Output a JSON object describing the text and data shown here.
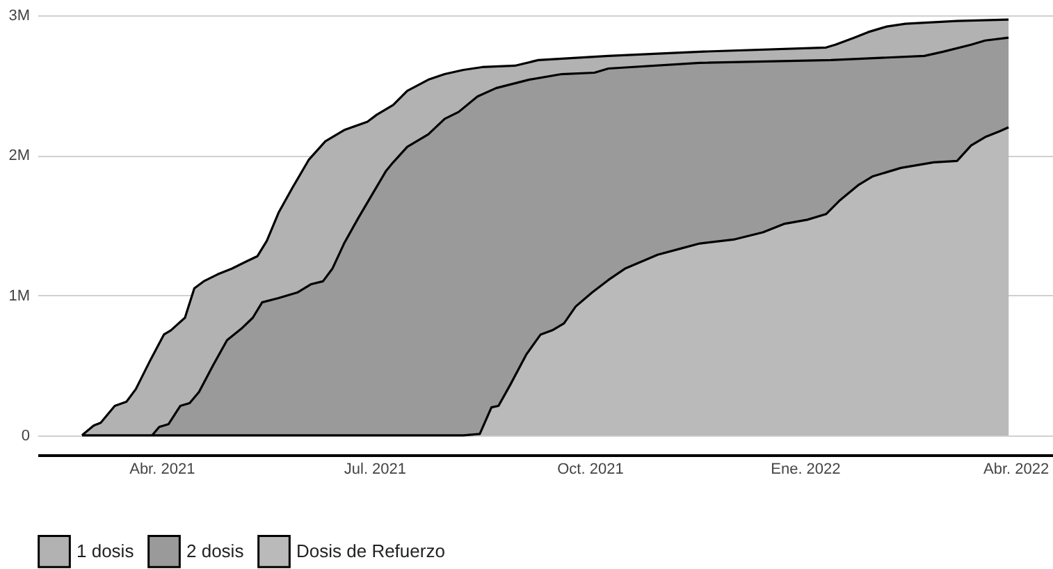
{
  "chart_data": {
    "type": "area",
    "legend": "bottom",
    "grid": "y",
    "xlim": [
      "2021-02-07",
      "2022-04-17"
    ],
    "xticks": [
      {
        "value": "2021-04-01",
        "label": "Abr. 2021"
      },
      {
        "value": "2021-07-01",
        "label": "Jul. 2021"
      },
      {
        "value": "2021-10-01",
        "label": "Oct. 2021"
      },
      {
        "value": "2022-01-01",
        "label": "Ene. 2022"
      },
      {
        "value": "2022-04-01",
        "label": "Abr. 2022"
      }
    ],
    "ylim": [
      -140000,
      3000000
    ],
    "yticks": [
      0,
      {
        "value": 1000000,
        "label": "1M"
      },
      {
        "value": 2000000,
        "label": "2M"
      },
      {
        "value": 3000000,
        "label": "3M"
      }
    ],
    "series": [
      {
        "name": "1 dosis",
        "color": "#b2b2b2",
        "x": [
          "2021-02-26",
          "2021-03-03",
          "2021-03-06",
          "2021-03-12",
          "2021-03-17",
          "2021-03-21",
          "2021-03-27",
          "2021-04-02",
          "2021-04-05",
          "2021-04-11",
          "2021-04-15",
          "2021-04-19",
          "2021-04-25",
          "2021-05-01",
          "2021-05-07",
          "2021-05-12",
          "2021-05-16",
          "2021-05-21",
          "2021-05-27",
          "2021-06-03",
          "2021-06-10",
          "2021-06-18",
          "2021-06-28",
          "2021-07-02",
          "2021-07-09",
          "2021-07-15",
          "2021-07-24",
          "2021-07-31",
          "2021-08-08",
          "2021-08-16",
          "2021-08-30",
          "2021-09-09",
          "2021-10-09",
          "2021-11-17",
          "2022-01-10",
          "2022-01-14",
          "2022-01-22",
          "2022-01-28",
          "2022-02-05",
          "2022-02-13",
          "2022-03-07",
          "2022-03-29"
        ],
        "values": [
          0,
          70000,
          90000,
          210000,
          240000,
          330000,
          530000,
          720000,
          750000,
          840000,
          1050000,
          1100000,
          1150000,
          1190000,
          1240000,
          1280000,
          1390000,
          1590000,
          1770000,
          1970000,
          2100000,
          2180000,
          2240000,
          2290000,
          2360000,
          2460000,
          2540000,
          2580000,
          2610000,
          2630000,
          2640000,
          2680000,
          2710000,
          2740000,
          2770000,
          2790000,
          2840000,
          2880000,
          2920000,
          2940000,
          2960000,
          2970000
        ]
      },
      {
        "name": "2 dosis",
        "color": "#9a9a9a",
        "x": [
          "2021-03-28",
          "2021-03-31",
          "2021-04-04",
          "2021-04-09",
          "2021-04-13",
          "2021-04-17",
          "2021-04-23",
          "2021-04-29",
          "2021-05-05",
          "2021-05-10",
          "2021-05-14",
          "2021-05-21",
          "2021-05-29",
          "2021-06-04",
          "2021-06-09",
          "2021-06-13",
          "2021-06-18",
          "2021-06-24",
          "2021-06-30",
          "2021-07-06",
          "2021-07-09",
          "2021-07-15",
          "2021-07-24",
          "2021-07-31",
          "2021-08-06",
          "2021-08-14",
          "2021-08-22",
          "2021-09-05",
          "2021-09-19",
          "2021-10-03",
          "2021-10-09",
          "2021-11-17",
          "2022-01-12",
          "2022-02-21",
          "2022-03-01",
          "2022-03-13",
          "2022-03-19",
          "2022-03-29"
        ],
        "values": [
          0,
          60000,
          80000,
          210000,
          230000,
          310000,
          500000,
          680000,
          760000,
          840000,
          950000,
          980000,
          1020000,
          1080000,
          1100000,
          1190000,
          1370000,
          1550000,
          1720000,
          1890000,
          1950000,
          2060000,
          2150000,
          2260000,
          2310000,
          2420000,
          2480000,
          2540000,
          2580000,
          2590000,
          2620000,
          2660000,
          2680000,
          2710000,
          2740000,
          2790000,
          2820000,
          2840000
        ]
      },
      {
        "name": "Dosis de Refuerzo",
        "color": "#bababa",
        "x": [
          "2021-02-26",
          "2021-08-08",
          "2021-08-15",
          "2021-08-20",
          "2021-08-23",
          "2021-08-28",
          "2021-09-04",
          "2021-09-10",
          "2021-09-15",
          "2021-09-20",
          "2021-09-25",
          "2021-10-02",
          "2021-10-09",
          "2021-10-16",
          "2021-10-23",
          "2021-10-30",
          "2021-11-08",
          "2021-11-17",
          "2021-12-02",
          "2021-12-14",
          "2021-12-23",
          "2022-01-02",
          "2022-01-10",
          "2022-01-16",
          "2022-01-24",
          "2022-01-30",
          "2022-02-11",
          "2022-02-25",
          "2022-03-07",
          "2022-03-13",
          "2022-03-19",
          "2022-03-25",
          "2022-03-29"
        ],
        "values": [
          0,
          0,
          10000,
          200000,
          210000,
          360000,
          580000,
          720000,
          750000,
          800000,
          920000,
          1020000,
          1110000,
          1190000,
          1240000,
          1290000,
          1330000,
          1370000,
          1400000,
          1450000,
          1510000,
          1540000,
          1580000,
          1680000,
          1790000,
          1850000,
          1910000,
          1950000,
          1960000,
          2070000,
          2130000,
          2170000,
          2200000
        ]
      }
    ]
  }
}
